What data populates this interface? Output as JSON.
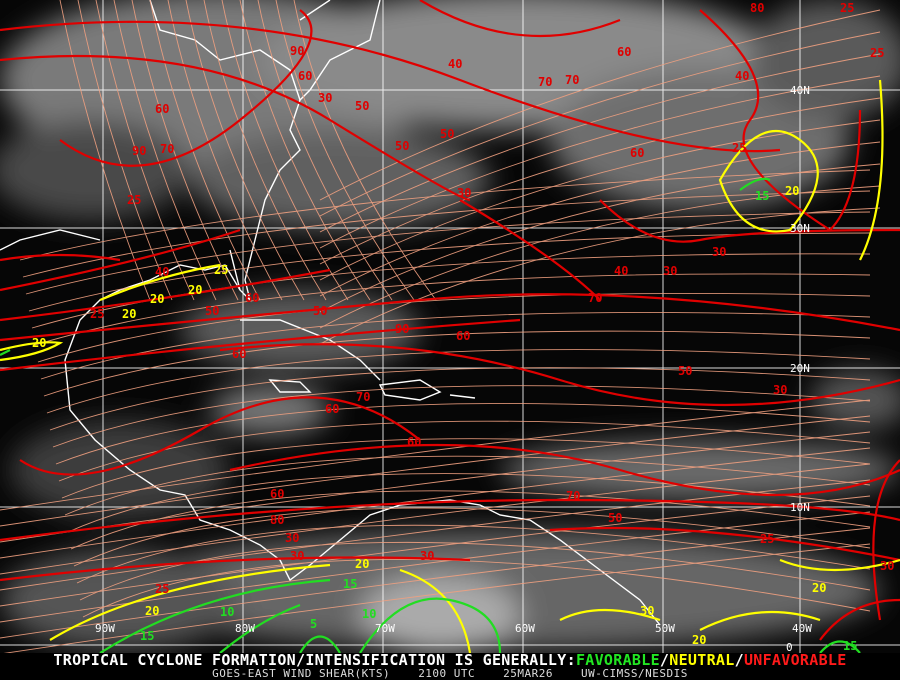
{
  "map": {
    "longitude_labels": [
      "90W",
      "80W",
      "70W",
      "60W",
      "50W",
      "40W"
    ],
    "latitude_labels": [
      "40N",
      "30N",
      "20N",
      "10N",
      "0"
    ],
    "contour_colors": {
      "unfavorable": "#e00000",
      "neutral": "#ffff00",
      "favorable": "#22dd22",
      "streamline": "#f0a080",
      "coast": "#ffffff",
      "grid": "#ffffff"
    },
    "contour_labels": {
      "red": [
        "90",
        "60",
        "50",
        "30",
        "40",
        "50",
        "70",
        "60",
        "70",
        "80",
        "90",
        "60",
        "70",
        "50",
        "60",
        "30",
        "25",
        "40",
        "50",
        "40",
        "30",
        "60",
        "25",
        "60",
        "50",
        "90",
        "60",
        "70",
        "60",
        "70",
        "60",
        "50",
        "30",
        "70",
        "80",
        "30",
        "60",
        "50",
        "40",
        "30",
        "25",
        "25",
        "25",
        "30",
        "25",
        "30",
        "30",
        "25"
      ],
      "yellow": [
        "20",
        "20",
        "20",
        "20",
        "20",
        "25",
        "20",
        "20",
        "20",
        "20",
        "30",
        "20",
        "20",
        "20"
      ],
      "green": [
        "15",
        "15",
        "15",
        "10",
        "5",
        "10",
        "15"
      ]
    }
  },
  "footer": {
    "prefix": "TROPICAL CYCLONE FORMATION/INTENSIFICATION IS GENERALLY:",
    "favorable": "FAVORABLE",
    "slash1": "/",
    "neutral": "NEUTRAL",
    "slash2": "/",
    "unfavorable": "UNFAVORABLE",
    "product": "GOES-EAST WIND SHEAR(KTS)",
    "time": "2100 UTC",
    "date": "25MAR26",
    "source": "UW-CIMSS/NESDIS"
  }
}
